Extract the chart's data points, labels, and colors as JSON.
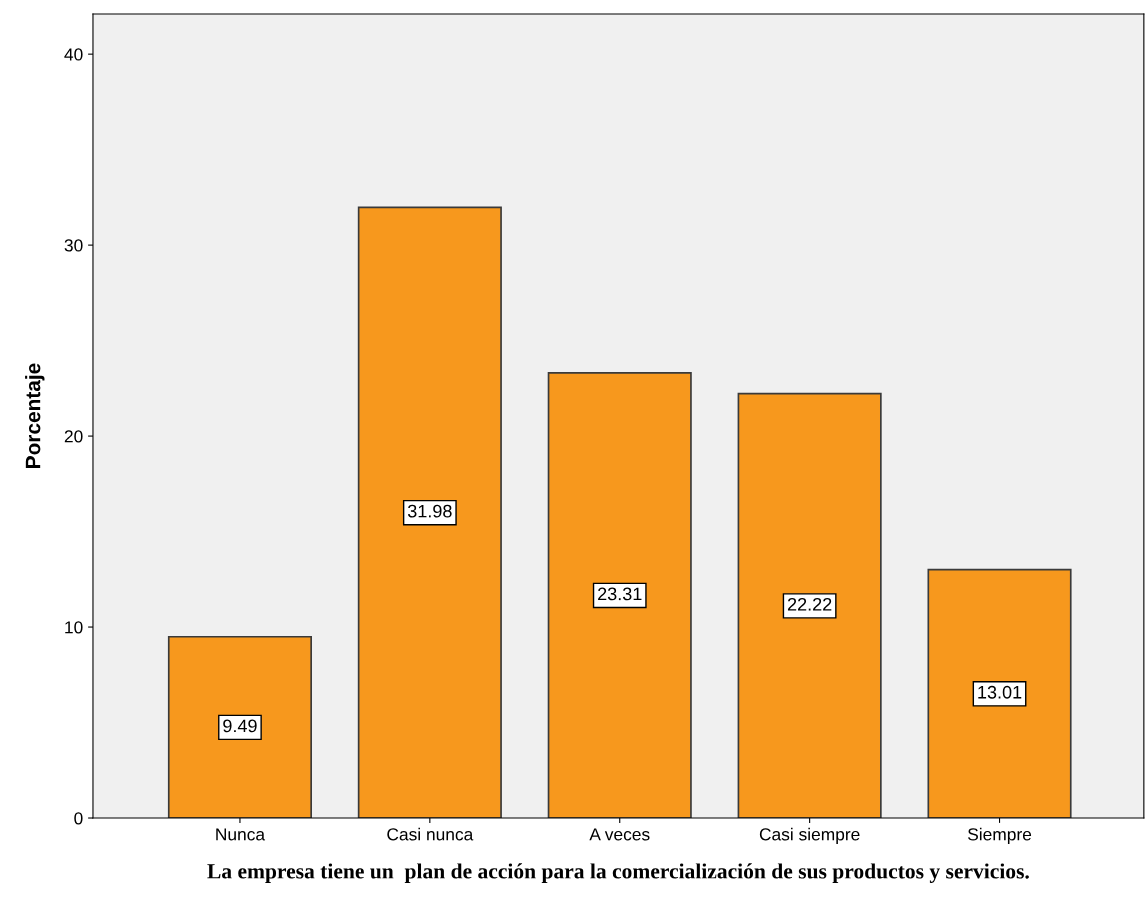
{
  "chart_data": {
    "type": "bar",
    "xlabel": "La empresa tiene un  plan de acción para la comercialización de sus productos y servicios.",
    "ylabel": "Porcentaje",
    "categories": [
      "Nunca",
      "Casi nunca",
      "A veces",
      "Casi siempre",
      "Siempre"
    ],
    "values": [
      9.49,
      31.98,
      23.31,
      22.22,
      13.01
    ],
    "color": "#f7981d",
    "ylim": [
      0,
      42.1
    ],
    "yticks": [
      0,
      10,
      20,
      30,
      40
    ],
    "grid": false,
    "data_labels": true
  }
}
